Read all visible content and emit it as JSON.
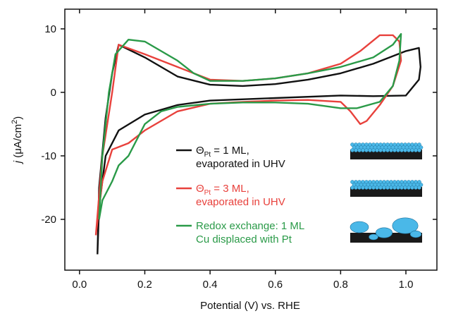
{
  "chart_data": {
    "type": "line",
    "xlabel": "Potential (V) vs. RHE",
    "ylabel": {
      "symbol": "j",
      "unit": "(μA/cm",
      "exponent": "2",
      "close": ")"
    },
    "xlim": [
      -0.045,
      1.095
    ],
    "ylim": [
      -28,
      13.1
    ],
    "xticks": [
      {
        "value": 0,
        "label": "0.0"
      },
      0.2,
      0.4,
      0.6,
      0.8,
      {
        "value": 1,
        "label": "1.0"
      }
    ],
    "yticks": [
      10,
      0,
      -10,
      -20
    ],
    "series": [
      {
        "name": {
          "symbol": "Θ",
          "subscript": "Pt",
          "text": " = 1 ML,",
          "line2": "evaporated in UHV"
        },
        "color": "#111111",
        "x": [
          0.055,
          0.06,
          0.08,
          0.1,
          0.12,
          0.2,
          0.3,
          0.4,
          0.5,
          0.6,
          0.7,
          0.8,
          0.9,
          1.0,
          1.04,
          1.045,
          1.04,
          1.0,
          0.9,
          0.8,
          0.6,
          0.4,
          0.3,
          0.2,
          0.12,
          0.08,
          0.06,
          0.055
        ],
        "y": [
          -25.5,
          -15,
          -4,
          3,
          7.5,
          5.5,
          2.5,
          1.2,
          1,
          1.3,
          2,
          3,
          4.5,
          6.5,
          7,
          4,
          2,
          -0.5,
          -0.6,
          -0.5,
          -0.9,
          -1.3,
          -2,
          -3.5,
          -6,
          -10,
          -18,
          -25.5
        ]
      },
      {
        "name": {
          "symbol": "Θ",
          "subscript": "Pt",
          "text": " = 3 ML,",
          "line2": "evaporated in UHV"
        },
        "color": "#e8413c",
        "x": [
          0.05,
          0.07,
          0.1,
          0.12,
          0.2,
          0.3,
          0.4,
          0.5,
          0.6,
          0.7,
          0.8,
          0.86,
          0.92,
          0.96,
          0.98,
          0.985,
          0.96,
          0.92,
          0.88,
          0.86,
          0.83,
          0.8,
          0.7,
          0.6,
          0.5,
          0.4,
          0.3,
          0.2,
          0.15,
          0.1,
          0.07,
          0.05
        ],
        "y": [
          -22.5,
          -10,
          0,
          7.5,
          6,
          4,
          2,
          1.8,
          2.2,
          3,
          4.5,
          6.5,
          9,
          9,
          8,
          5,
          1,
          -2,
          -4.5,
          -5,
          -3,
          -1.5,
          -1.2,
          -1.3,
          -1.5,
          -1.8,
          -3,
          -6,
          -8,
          -9,
          -14,
          -22.5
        ]
      },
      {
        "name": {
          "text": "Redox exchange: 1 ML",
          "line2": "Cu displaced with Pt"
        },
        "color": "#2a9a48",
        "x": [
          0.06,
          0.07,
          0.09,
          0.11,
          0.15,
          0.2,
          0.3,
          0.35,
          0.4,
          0.5,
          0.6,
          0.7,
          0.8,
          0.9,
          0.96,
          0.985,
          0.98,
          0.96,
          0.92,
          0.85,
          0.8,
          0.7,
          0.6,
          0.5,
          0.4,
          0.3,
          0.25,
          0.2,
          0.15,
          0.12,
          0.1,
          0.07,
          0.06
        ],
        "y": [
          -20,
          -10,
          0,
          6,
          8.3,
          8,
          5,
          3,
          1.8,
          1.8,
          2.2,
          3,
          4,
          5.5,
          7.5,
          9.2,
          5,
          1,
          -1.5,
          -2.5,
          -2.5,
          -1.8,
          -1.6,
          -1.6,
          -1.8,
          -2.3,
          -3,
          -5,
          -10,
          -11.5,
          -14,
          -17,
          -20
        ]
      }
    ]
  }
}
